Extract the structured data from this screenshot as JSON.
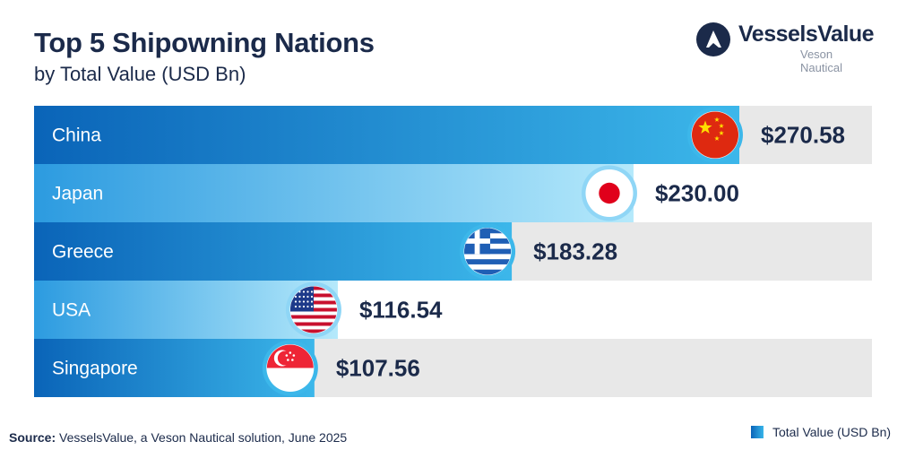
{
  "title": "Top 5 Shipowning Nations",
  "subtitle": "by Total Value (USD Bn)",
  "logo": {
    "brand": "VesselsValue",
    "tagline": "Veson Nautical",
    "icon": "vessels-value-logo-icon"
  },
  "source": {
    "label": "Source:",
    "text": "VesselsValue, a Veson Nautical solution, June 2025"
  },
  "legend": {
    "label": "Total Value (USD Bn)"
  },
  "colors": {
    "title": "#1b2a4a",
    "bar_dark_start": "#0a64b8",
    "bar_dark_end": "#3cb7ea",
    "bar_light_start": "#2c9be0",
    "bar_light_end": "#aee6fa",
    "track_grey": "#e8e8e8"
  },
  "chart_data": {
    "type": "bar",
    "orientation": "horizontal",
    "categories": [
      "China",
      "Japan",
      "Greece",
      "USA",
      "Singapore"
    ],
    "values": [
      270.58,
      230.0,
      183.28,
      116.54,
      107.56
    ],
    "value_labels": [
      "$270.58",
      "$230.00",
      "$183.28",
      "$116.54",
      "$107.56"
    ],
    "flags": [
      "china-flag-icon",
      "japan-flag-icon",
      "greece-flag-icon",
      "usa-flag-icon",
      "singapore-flag-icon"
    ],
    "title": "Top 5 Shipowning Nations",
    "subtitle": "by Total Value (USD Bn)",
    "legend": [
      "Total Value (USD Bn)"
    ],
    "legend_position": "bottom-right",
    "grid": false
  }
}
